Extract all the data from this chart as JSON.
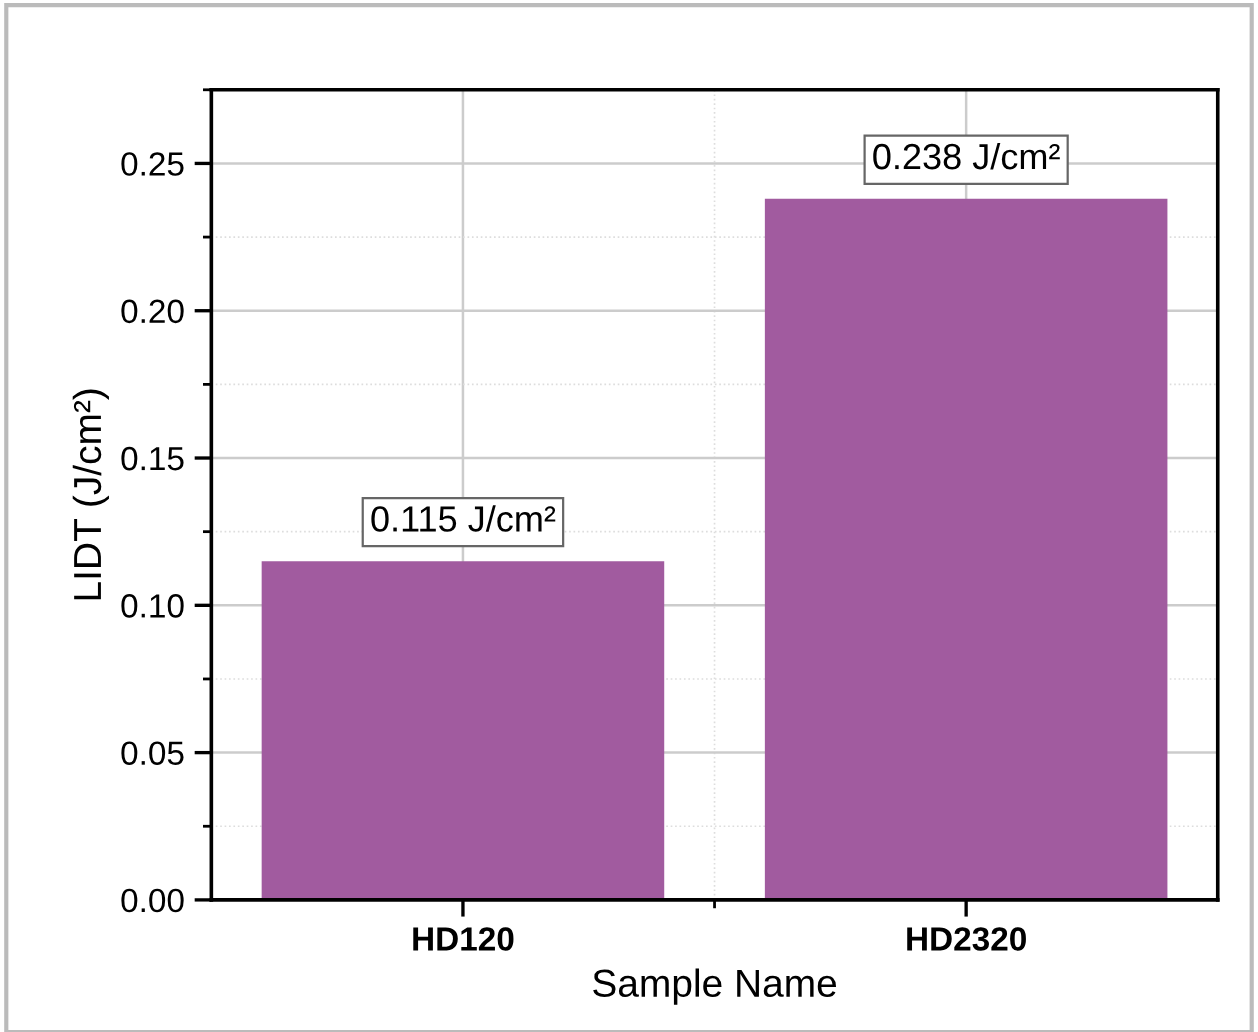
{
  "chart_data": {
    "type": "bar",
    "xlabel": "Sample Name",
    "ylabel": "LIDT (J/cm²)",
    "categories": [
      "HD120",
      "HD2320"
    ],
    "values": [
      0.115,
      0.238
    ],
    "value_labels": [
      "0.115 J/cm²",
      "0.238 J/cm²"
    ],
    "color": "#a15b9f",
    "ylim": [
      0,
      0.275
    ],
    "yticks": [
      "0.00",
      "0.05",
      "0.10",
      "0.15",
      "0.20",
      "0.25"
    ],
    "grid": true
  }
}
